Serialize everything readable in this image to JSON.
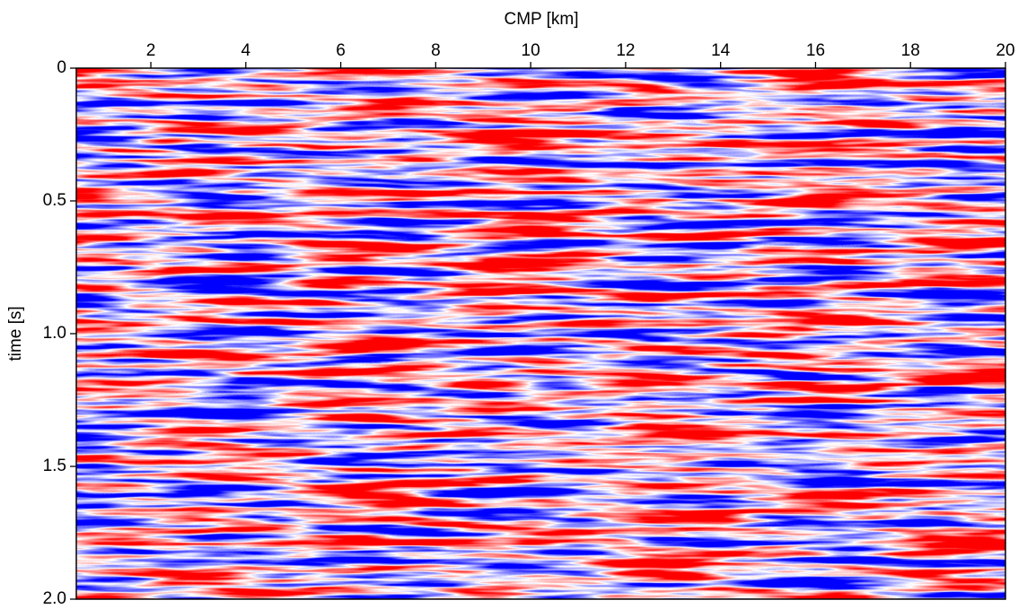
{
  "chart_data": {
    "type": "image",
    "xlabel": "CMP [km]",
    "ylabel": "time [s]",
    "xlim": [
      0.43,
      20
    ],
    "ylim": [
      0,
      2
    ],
    "xticks": [
      2,
      4,
      6,
      8,
      10,
      12,
      14,
      16,
      18,
      20
    ],
    "yticks": [
      0,
      0.5,
      {
        "value": 1,
        "label": "1.0"
      },
      1.5,
      {
        "value": 2,
        "label": "2.0"
      }
    ],
    "colormap": [
      "#0000ff",
      "#ffffff",
      "#ff0000"
    ]
  }
}
